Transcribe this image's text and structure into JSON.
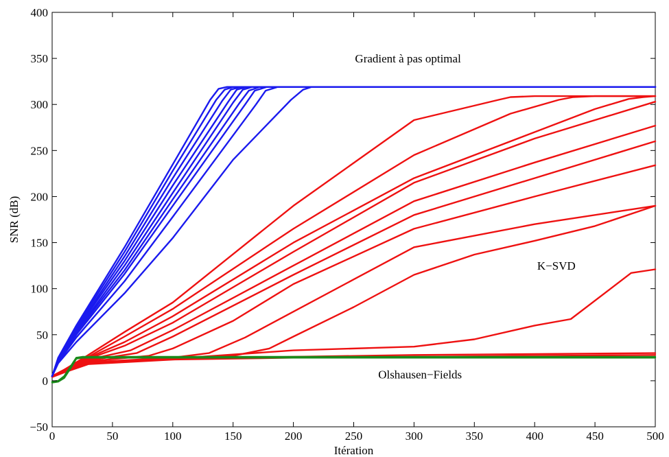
{
  "chart_data": {
    "type": "line",
    "title": "",
    "xlabel": "Itération",
    "ylabel": "SNR (dB)",
    "xlim": [
      0,
      500
    ],
    "ylim": [
      -50,
      400
    ],
    "xticks": [
      "0",
      "50",
      "100",
      "150",
      "200",
      "250",
      "300",
      "350",
      "400",
      "450",
      "500"
    ],
    "yticks": [
      "−50",
      "0",
      "50",
      "100",
      "150",
      "200",
      "250",
      "300",
      "350",
      "400"
    ],
    "grid": false,
    "legend": "none",
    "annotations": [
      {
        "text": "Gradient à pas optimal",
        "x": 295,
        "y": 350
      },
      {
        "text": "K−SVD",
        "x": 418,
        "y": 125
      },
      {
        "text": "Olshausen−Fields",
        "x": 305,
        "y": 7
      }
    ],
    "colors": {
      "gradient": "#1a1aee",
      "ksvd": "#ee1111",
      "olshausen": "#1a8a1a"
    },
    "series": [
      {
        "group": "gradient",
        "color": "#1a1aee",
        "x": [
          0,
          5,
          20,
          60,
          100,
          131,
          138,
          145,
          200,
          300,
          400,
          500
        ],
        "y": [
          5,
          25,
          60,
          145,
          235,
          305,
          317,
          319,
          319,
          319,
          319,
          319
        ]
      },
      {
        "group": "gradient",
        "color": "#1a1aee",
        "x": [
          0,
          5,
          20,
          60,
          100,
          136,
          143,
          150,
          200,
          300,
          400,
          500
        ],
        "y": [
          5,
          24,
          58,
          140,
          228,
          305,
          316,
          319,
          319,
          319,
          319,
          319
        ]
      },
      {
        "group": "gradient",
        "color": "#1a1aee",
        "x": [
          0,
          5,
          20,
          60,
          100,
          141,
          148,
          156,
          200,
          300,
          400,
          500
        ],
        "y": [
          5,
          23,
          56,
          135,
          220,
          304,
          316,
          319,
          319,
          319,
          319,
          319
        ]
      },
      {
        "group": "gradient",
        "color": "#1a1aee",
        "x": [
          0,
          5,
          20,
          60,
          100,
          146,
          153,
          161,
          200,
          300,
          400,
          500
        ],
        "y": [
          5,
          23,
          55,
          130,
          212,
          303,
          316,
          319,
          319,
          319,
          319,
          319
        ]
      },
      {
        "group": "gradient",
        "color": "#1a1aee",
        "x": [
          0,
          5,
          20,
          60,
          100,
          150,
          158,
          166,
          200,
          300,
          400,
          500
        ],
        "y": [
          5,
          22,
          53,
          125,
          204,
          302,
          316,
          319,
          319,
          319,
          319,
          319
        ]
      },
      {
        "group": "gradient",
        "color": "#1a1aee",
        "x": [
          0,
          5,
          20,
          60,
          100,
          155,
          163,
          172,
          200,
          300,
          400,
          500
        ],
        "y": [
          5,
          22,
          52,
          120,
          197,
          301,
          315,
          319,
          319,
          319,
          319,
          319
        ]
      },
      {
        "group": "gradient",
        "color": "#1a1aee",
        "x": [
          0,
          5,
          20,
          60,
          100,
          160,
          168,
          178,
          200,
          300,
          400,
          500
        ],
        "y": [
          5,
          21,
          50,
          116,
          190,
          300,
          315,
          319,
          319,
          319,
          319,
          319
        ]
      },
      {
        "group": "gradient",
        "color": "#1a1aee",
        "x": [
          0,
          5,
          20,
          60,
          100,
          169,
          177,
          187,
          220,
          300,
          400,
          500
        ],
        "y": [
          5,
          20,
          47,
          108,
          178,
          300,
          315,
          319,
          319,
          319,
          319,
          319
        ]
      },
      {
        "group": "gradient",
        "color": "#1a1aee",
        "x": [
          0,
          5,
          20,
          60,
          100,
          150,
          198,
          208,
          215,
          300,
          400,
          500
        ],
        "y": [
          5,
          19,
          42,
          95,
          155,
          240,
          305,
          316,
          319,
          319,
          319,
          319
        ]
      },
      {
        "group": "ksvd",
        "color": "#ee1111",
        "x": [
          0,
          10,
          30,
          60,
          100,
          200,
          300,
          370,
          380,
          400,
          500
        ],
        "y": [
          5,
          12,
          28,
          53,
          85,
          190,
          283,
          305,
          308,
          309,
          309
        ]
      },
      {
        "group": "ksvd",
        "color": "#ee1111",
        "x": [
          0,
          10,
          30,
          60,
          100,
          200,
          300,
          380,
          420,
          432,
          450,
          500
        ],
        "y": [
          5,
          12,
          26,
          48,
          78,
          165,
          245,
          290,
          305,
          308,
          309,
          309
        ]
      },
      {
        "group": "ksvd",
        "color": "#ee1111",
        "x": [
          0,
          10,
          30,
          60,
          100,
          200,
          300,
          400,
          450,
          478,
          490,
          500
        ],
        "y": [
          5,
          11,
          25,
          42,
          70,
          150,
          220,
          270,
          295,
          306,
          308,
          309
        ]
      },
      {
        "group": "ksvd",
        "color": "#ee1111",
        "x": [
          0,
          10,
          30,
          60,
          100,
          200,
          300,
          400,
          500
        ],
        "y": [
          5,
          11,
          24,
          38,
          63,
          140,
          215,
          263,
          303
        ]
      },
      {
        "group": "ksvd",
        "color": "#ee1111",
        "x": [
          0,
          10,
          30,
          65,
          100,
          200,
          300,
          400,
          500
        ],
        "y": [
          5,
          11,
          23,
          33,
          55,
          125,
          195,
          237,
          277
        ]
      },
      {
        "group": "ksvd",
        "color": "#ee1111",
        "x": [
          0,
          10,
          30,
          70,
          100,
          200,
          300,
          400,
          500
        ],
        "y": [
          5,
          10,
          22,
          30,
          48,
          115,
          180,
          220,
          260
        ]
      },
      {
        "group": "ksvd",
        "color": "#ee1111",
        "x": [
          0,
          10,
          30,
          80,
          100,
          150,
          200,
          300,
          400,
          500
        ],
        "y": [
          5,
          10,
          21,
          27,
          35,
          65,
          105,
          165,
          200,
          234
        ]
      },
      {
        "group": "ksvd",
        "color": "#ee1111",
        "x": [
          0,
          10,
          30,
          100,
          130,
          160,
          200,
          250,
          300,
          400,
          500
        ],
        "y": [
          5,
          10,
          20,
          25,
          30,
          47,
          75,
          110,
          145,
          170,
          190
        ]
      },
      {
        "group": "ksvd",
        "color": "#ee1111",
        "x": [
          0,
          10,
          30,
          100,
          150,
          180,
          200,
          250,
          300,
          350,
          400,
          450,
          500
        ],
        "y": [
          5,
          10,
          20,
          24,
          27,
          35,
          48,
          80,
          115,
          137,
          152,
          168,
          190
        ]
      },
      {
        "group": "ksvd",
        "color": "#ee1111",
        "x": [
          0,
          10,
          30,
          100,
          200,
          300,
          350,
          400,
          430,
          480,
          500
        ],
        "y": [
          5,
          10,
          19,
          24,
          33,
          37,
          45,
          60,
          67,
          117,
          121
        ]
      },
      {
        "group": "ksvd",
        "color": "#ee1111",
        "x": [
          0,
          10,
          30,
          100,
          200,
          300,
          400,
          500
        ],
        "y": [
          5,
          10,
          19,
          24,
          26,
          28,
          29,
          30
        ]
      },
      {
        "group": "ksvd",
        "color": "#ee1111",
        "x": [
          0,
          10,
          30,
          100,
          200,
          300,
          400,
          500
        ],
        "y": [
          4,
          9,
          18,
          23,
          25,
          26,
          27,
          28
        ]
      },
      {
        "group": "olshausen",
        "color": "#1a8a1a",
        "x": [
          0,
          5,
          10,
          15,
          20,
          25,
          50,
          100,
          200,
          300,
          400,
          500
        ],
        "y": [
          -1,
          0,
          5,
          15,
          25,
          26,
          26,
          26,
          26,
          26,
          26,
          26
        ]
      },
      {
        "group": "olshausen",
        "color": "#1a8a1a",
        "x": [
          0,
          5,
          10,
          15,
          20,
          25,
          50,
          100,
          200,
          300,
          400,
          500
        ],
        "y": [
          -2,
          -1,
          3,
          13,
          24,
          25,
          25,
          25,
          25,
          25,
          25,
          25
        ]
      }
    ]
  }
}
